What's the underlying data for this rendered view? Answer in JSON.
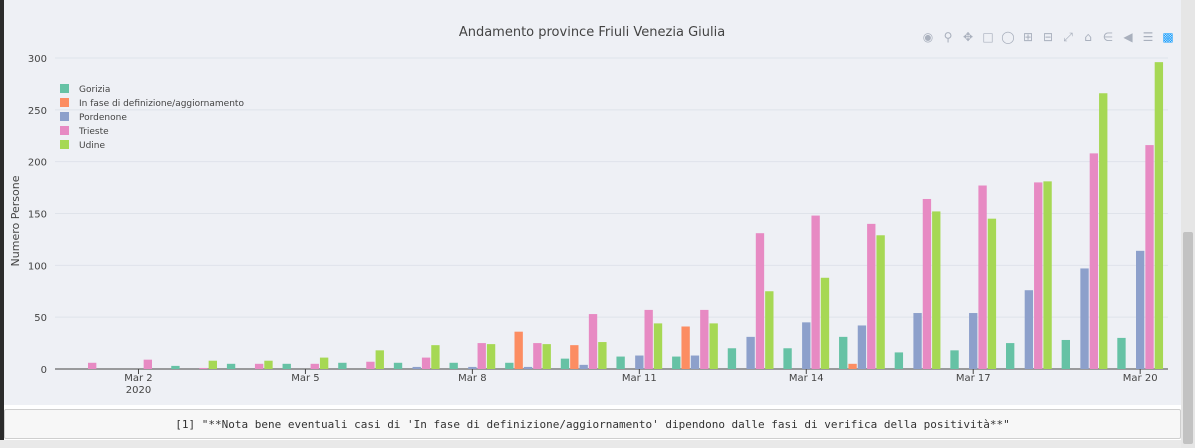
{
  "chart_data": {
    "type": "bar",
    "title": "Andamento province Friuli Venezia Giulia",
    "xlabel": "",
    "ylabel": "Numero Persone",
    "ylim": [
      0,
      300
    ],
    "yticks": [
      0,
      50,
      100,
      150,
      200,
      250,
      300
    ],
    "grid": true,
    "legend_position": "top-left",
    "categories": [
      "2020-03-01",
      "2020-03-02",
      "2020-03-03",
      "2020-03-04",
      "2020-03-05",
      "2020-03-06",
      "2020-03-07",
      "2020-03-08",
      "2020-03-09",
      "2020-03-10",
      "2020-03-11",
      "2020-03-12",
      "2020-03-13",
      "2020-03-14",
      "2020-03-15",
      "2020-03-16",
      "2020-03-17",
      "2020-03-18",
      "2020-03-19",
      "2020-03-20"
    ],
    "x_tick_labels": [
      {
        "date": "2020-03-02",
        "label": "Mar 2",
        "sublabel": "2020"
      },
      {
        "date": "2020-03-05",
        "label": "Mar 5",
        "sublabel": ""
      },
      {
        "date": "2020-03-08",
        "label": "Mar 8",
        "sublabel": ""
      },
      {
        "date": "2020-03-11",
        "label": "Mar 11",
        "sublabel": ""
      },
      {
        "date": "2020-03-14",
        "label": "Mar 14",
        "sublabel": ""
      },
      {
        "date": "2020-03-17",
        "label": "Mar 17",
        "sublabel": ""
      },
      {
        "date": "2020-03-20",
        "label": "Mar 20",
        "sublabel": ""
      }
    ],
    "series": [
      {
        "name": "Gorizia",
        "color": "#66c2a5",
        "values": [
          0,
          0,
          3,
          5,
          5,
          6,
          6,
          6,
          6,
          10,
          12,
          12,
          20,
          20,
          31,
          16,
          18,
          25,
          28,
          30
        ]
      },
      {
        "name": "In fase di definizione/aggiornamento",
        "color": "#fc8d62",
        "values": [
          0,
          0,
          0,
          0,
          0,
          0,
          0,
          0,
          36,
          23,
          0,
          41,
          0,
          0,
          5,
          0,
          0,
          0,
          0,
          0
        ]
      },
      {
        "name": "Pordenone",
        "color": "#8da0cb",
        "values": [
          0,
          0,
          0,
          0,
          0,
          0,
          2,
          2,
          2,
          4,
          13,
          13,
          31,
          45,
          42,
          54,
          54,
          76,
          97,
          114
        ]
      },
      {
        "name": "Trieste",
        "color": "#e78ac3",
        "values": [
          6,
          9,
          1,
          5,
          5,
          7,
          11,
          25,
          25,
          53,
          57,
          57,
          131,
          148,
          140,
          164,
          177,
          180,
          208,
          216
        ]
      },
      {
        "name": "Udine",
        "color": "#a6d854",
        "values": [
          0,
          0,
          8,
          8,
          11,
          18,
          23,
          24,
          24,
          26,
          44,
          44,
          75,
          88,
          129,
          152,
          145,
          181,
          266,
          296
        ]
      }
    ]
  },
  "modebar": {
    "icons": [
      "camera-icon",
      "zoom-icon",
      "pan-icon",
      "box-select-icon",
      "lasso-icon",
      "zoom-in-icon",
      "zoom-out-icon",
      "autoscale-icon",
      "reset-axes-icon",
      "spike-lines-icon",
      "hover-closest-icon",
      "hover-compare-icon",
      "plotly-logo-icon"
    ]
  },
  "note": {
    "text": "[1] \"**Nota bene eventuali casi di 'In fase di definizione/aggiornamento' dipendono dalle fasi di verifica della positività**\""
  }
}
